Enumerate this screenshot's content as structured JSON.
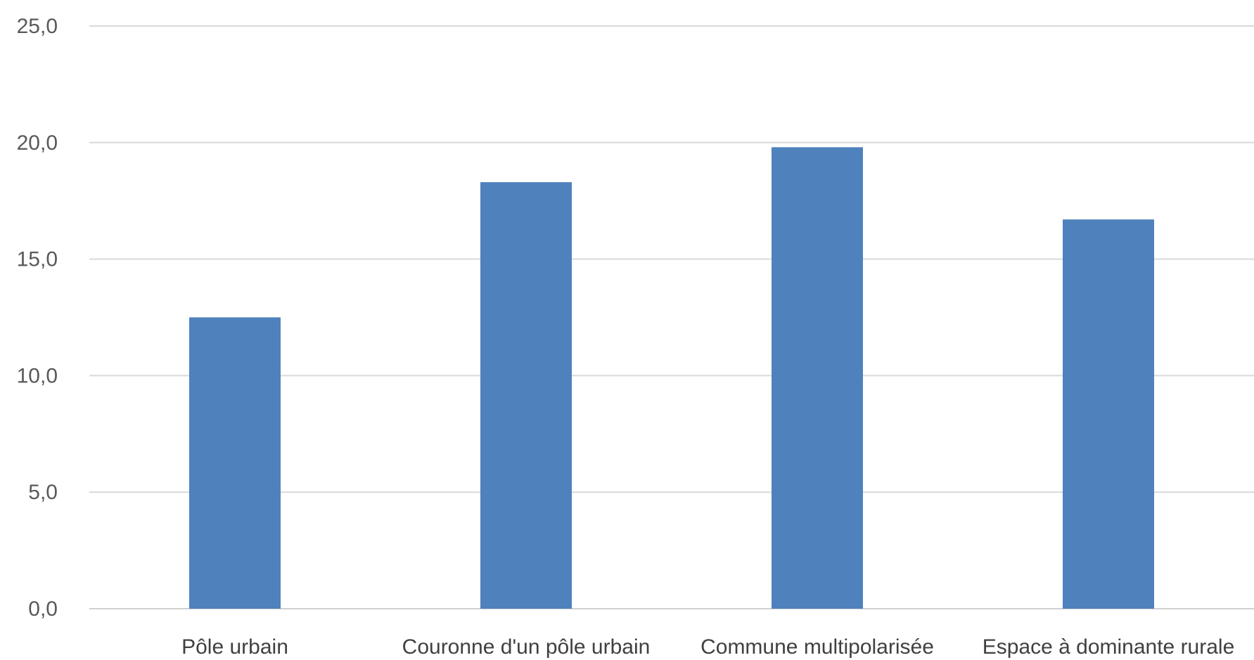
{
  "chart_data": {
    "type": "bar",
    "title": "",
    "xlabel": "",
    "ylabel": "",
    "categories": [
      "Pôle urbain",
      "Couronne d'un pôle urbain",
      "Commune multipolarisée",
      "Espace à dominante rurale"
    ],
    "values": [
      12.5,
      18.3,
      19.8,
      16.7
    ],
    "ylim": [
      0,
      25
    ],
    "yticks": [
      0,
      5,
      10,
      15,
      20,
      25
    ],
    "ytick_labels": [
      "0,0",
      "5,0",
      "10,0",
      "15,0",
      "20,0",
      "25,0"
    ],
    "grid": true,
    "legend": "none",
    "colors": {
      "bar": "#4f81bd"
    }
  }
}
